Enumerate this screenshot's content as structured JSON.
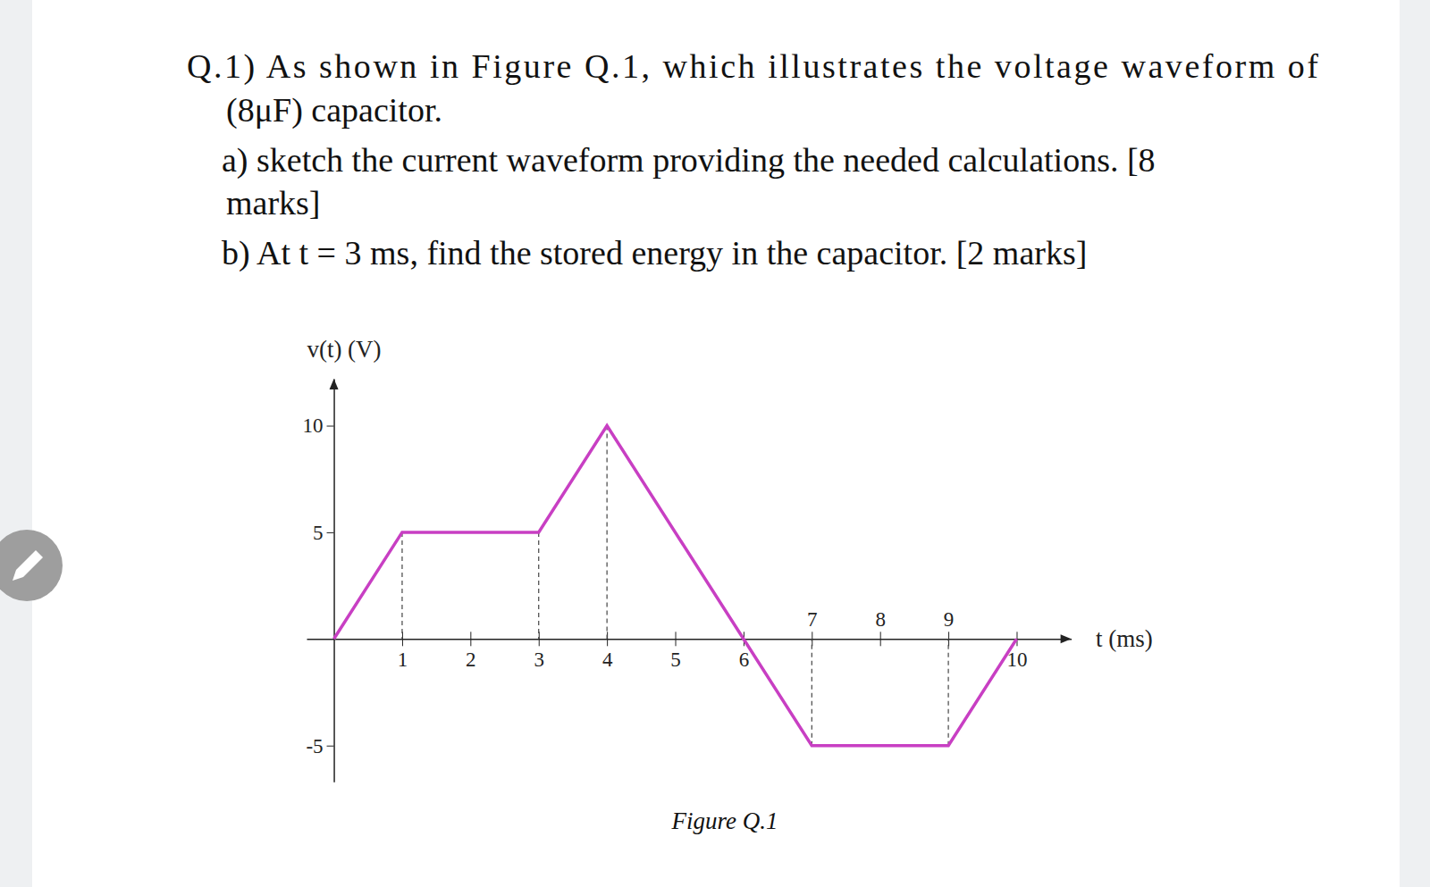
{
  "question": {
    "lines": [
      "Q.1) As shown in Figure Q.1, which illustrates the voltage waveform of",
      "(8μF) capacitor.",
      "a) sketch the current waveform providing the needed calculations. [8",
      "marks]",
      "b) At t = 3 ms, find the stored energy in the capacitor. [2 marks]"
    ]
  },
  "chart_data": {
    "type": "line",
    "x_label": "t (ms)",
    "y_label": "v(t) (V)",
    "caption": "Figure Q.1",
    "x": [
      0,
      1,
      3,
      4,
      6,
      7,
      9,
      10
    ],
    "values": [
      0,
      5,
      5,
      10,
      0,
      -5,
      -5,
      0
    ],
    "color": "#c83fc3",
    "xlim": [
      -0.4,
      10.8
    ],
    "ylim": [
      -6.7,
      12.2
    ],
    "xticks": [
      1,
      2,
      3,
      4,
      5,
      6,
      7,
      8,
      9,
      10
    ],
    "yticks": [
      -5,
      5,
      10
    ],
    "grid": false
  }
}
